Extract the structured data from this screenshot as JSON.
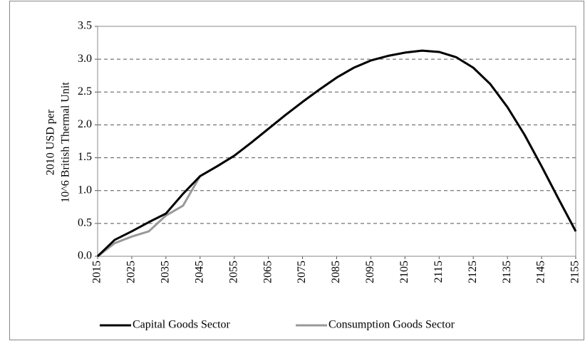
{
  "chart_data": {
    "type": "line",
    "y_label": [
      "2010 USD per",
      "10^6 British Thermal Unit"
    ],
    "x": [
      2015,
      2020,
      2025,
      2030,
      2035,
      2040,
      2045,
      2050,
      2055,
      2060,
      2065,
      2070,
      2075,
      2080,
      2085,
      2090,
      2095,
      2100,
      2105,
      2110,
      2115,
      2120,
      2125,
      2130,
      2135,
      2140,
      2145,
      2150,
      2155
    ],
    "series": [
      {
        "name": "Capital Goods Sector",
        "color": "#000000",
        "values": [
          0,
          0.25,
          0.38,
          0.52,
          0.65,
          0.95,
          1.22,
          1.37,
          1.53,
          1.73,
          1.94,
          2.15,
          2.35,
          2.54,
          2.72,
          2.87,
          2.98,
          3.05,
          3.1,
          3.13,
          3.11,
          3.03,
          2.87,
          2.62,
          2.27,
          1.85,
          1.37,
          0.87,
          0.38
        ]
      },
      {
        "name": "Consumption Goods Sector",
        "color": "#999999",
        "values": [
          0,
          0.2,
          0.3,
          0.38,
          0.62,
          0.77,
          1.22,
          1.37,
          1.53,
          1.73,
          1.94,
          2.15,
          2.35,
          2.54,
          2.72,
          2.87,
          2.98,
          3.05,
          3.1,
          3.13,
          3.11,
          3.03,
          2.87,
          2.62,
          2.27,
          1.85,
          1.37,
          0.87,
          0.38
        ]
      }
    ],
    "xlim": [
      2015,
      2155
    ],
    "xticks": [
      2015,
      2025,
      2035,
      2045,
      2055,
      2065,
      2075,
      2085,
      2095,
      2105,
      2115,
      2125,
      2135,
      2145,
      2155
    ],
    "ylim": [
      0,
      3.5
    ],
    "yticks": [
      {
        "value": 0,
        "label": "0.0"
      },
      0.5,
      {
        "value": 1,
        "label": "1.0"
      },
      1.5,
      {
        "value": 2,
        "label": "2.0"
      },
      2.5,
      {
        "value": 3,
        "label": "3.0"
      },
      3.5
    ],
    "grid": true,
    "legend": "bottom"
  }
}
